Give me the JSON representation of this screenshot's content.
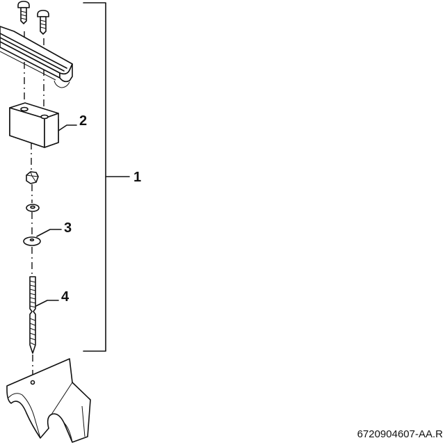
{
  "callouts": {
    "c1": "1",
    "c2": "2",
    "c3": "3",
    "c4": "4"
  },
  "reference": "6720904607-AA.R"
}
